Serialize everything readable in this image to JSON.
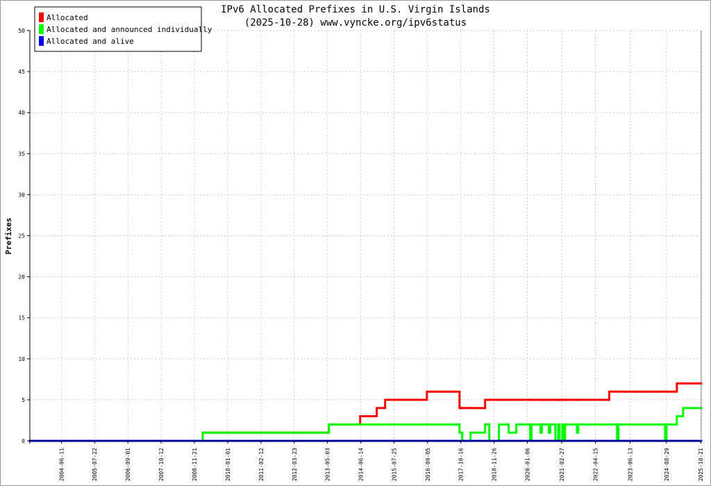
{
  "chart_data": {
    "type": "line",
    "step": true,
    "title": "IPv6 Allocated Prefixes in U.S. Virgin Islands",
    "subtitle": "(2025-10-28) www.vyncke.org/ipv6status",
    "y_label": "Prefixes",
    "legend": "top-left",
    "grid": true,
    "xlim": [
      "2003-05-24",
      "2025-10-28"
    ],
    "xticks": [
      "2004-06-11",
      "2005-07-22",
      "2006-09-01",
      "2007-10-12",
      "2008-11-21",
      "2010-01-01",
      "2011-02-12",
      "2012-03-23",
      "2013-05-03",
      "2014-06-14",
      "2015-07-25",
      "2016-09-05",
      "2017-10-16",
      "2018-11-26",
      "2020-01-06",
      "2021-02-27",
      "2022-04-15",
      "2023-06-13",
      "2024-08-29",
      "2025-10-21"
    ],
    "ylim": [
      0,
      50
    ],
    "yticks": [
      0,
      5,
      10,
      15,
      20,
      25,
      30,
      35,
      40,
      45,
      50
    ],
    "x": [
      "2003-05-24",
      "2009-03-02",
      "2013-05-20",
      "2014-06-06",
      "2014-12-25",
      "2015-04-06",
      "2016-08-28",
      "2017-09-30",
      "2017-11-02",
      "2018-02-11",
      "2018-08-08",
      "2018-09-28",
      "2019-01-24",
      "2019-05-22",
      "2019-08-24",
      "2020-02-09",
      "2020-02-26",
      "2020-06-14",
      "2020-07-01",
      "2020-09-24",
      "2020-10-11",
      "2020-12-13",
      "2021-01-16",
      "2021-02-02",
      "2021-03-07",
      "2021-03-24",
      "2021-04-10",
      "2021-09-01",
      "2021-09-18",
      "2022-10-01",
      "2023-01-04",
      "2023-01-21",
      "2024-08-12",
      "2024-08-29",
      "2025-01-03",
      "2025-03-20",
      "2025-10-28"
    ],
    "series": [
      {
        "name": "Allocated",
        "color": "#ff0000",
        "values": [
          0,
          1,
          2,
          3,
          4,
          5,
          6,
          4,
          4,
          4,
          5,
          5,
          5,
          5,
          5,
          5,
          5,
          5,
          5,
          5,
          5,
          5,
          5,
          5,
          5,
          5,
          5,
          5,
          5,
          6,
          6,
          6,
          6,
          6,
          7,
          7,
          7
        ]
      },
      {
        "name": "Allocated and announced individually",
        "color": "#00ff00",
        "values": [
          0,
          1,
          2,
          2,
          2,
          2,
          2,
          1,
          0,
          1,
          2,
          0,
          2,
          1,
          2,
          0,
          2,
          1,
          2,
          1,
          2,
          0,
          2,
          0,
          2,
          0,
          2,
          1,
          2,
          2,
          0,
          2,
          0,
          2,
          3,
          4,
          4
        ]
      },
      {
        "name": "Allocated and alive",
        "color": "#0000ff",
        "values": [
          0,
          0,
          0,
          0,
          0,
          0,
          0,
          0,
          0,
          0,
          0,
          0,
          0,
          0,
          0,
          0,
          0,
          0,
          0,
          0,
          0,
          0,
          0,
          0,
          0,
          0,
          0,
          0,
          0,
          0,
          0,
          0,
          0,
          0,
          0,
          0,
          0
        ]
      }
    ]
  }
}
